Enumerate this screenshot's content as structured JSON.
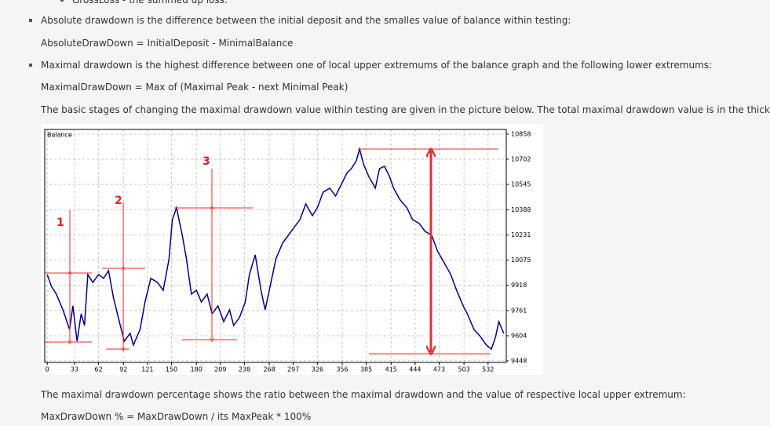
{
  "top_fragment": "GrossLoss - the summed up loss.",
  "bullet_1": "Absolute drawdown is the difference between the initial deposit and the smalles value of balance within testing:",
  "formula_1": "AbsoluteDrawDown = InitialDeposit - MinimalBalance",
  "bullet_2": "Maximal drawdown is the highest difference between one of local upper extremums of the balance graph and the following lower extremums:",
  "formula_2": "MaximalDrawDown = Max of (Maximal Peak - next Minimal Peak)",
  "paragraph_1": "The basic stages of changing the maximal drawdown value within testing are given in the picture below. The total maximal drawdown value is in the thick arrows.",
  "paragraph_2": "The maximal drawdown percentage shows the ratio between the maximal drawdown and the value of respective local upper extremum:",
  "formula_3": "MaxDrawDown % = MaxDrawDown / its MaxPeak * 100%",
  "chart_data": {
    "type": "line",
    "annotations": [
      "1",
      "2",
      "3"
    ],
    "x": [
      0,
      5,
      11,
      19,
      27,
      31,
      36,
      41,
      45,
      49,
      55,
      62,
      68,
      74,
      80,
      87,
      93,
      100,
      104,
      112,
      118,
      125,
      133,
      140,
      147,
      151,
      156,
      163,
      168,
      174,
      180,
      186,
      193,
      199,
      206,
      213,
      220,
      225,
      232,
      239,
      244,
      251,
      258,
      263,
      270,
      276,
      284,
      291,
      298,
      305,
      312,
      320,
      326,
      333,
      341,
      348,
      355,
      362,
      367,
      373,
      377,
      382,
      388,
      396,
      401,
      407,
      413,
      418,
      426,
      434,
      441,
      449,
      456,
      464,
      471,
      479,
      487,
      494,
      502,
      507,
      515,
      522,
      530,
      536,
      541,
      545,
      551
    ],
    "series": [
      {
        "name": "Balance",
        "color": "#00008b",
        "values": [
          9985,
          9912,
          9863,
          9765,
          9643,
          9790,
          9570,
          9741,
          9668,
          9985,
          9936,
          9985,
          9961,
          10009,
          9839,
          9692,
          9570,
          9619,
          9546,
          9643,
          9814,
          9961,
          9936,
          9887,
          10082,
          10326,
          10400,
          10229,
          10082,
          9863,
          9887,
          9814,
          9863,
          9741,
          9790,
          9692,
          9765,
          9668,
          9717,
          9814,
          9985,
          10107,
          9887,
          9765,
          9936,
          10082,
          10180,
          10229,
          10278,
          10326,
          10424,
          10351,
          10400,
          10497,
          10522,
          10473,
          10546,
          10619,
          10643,
          10692,
          10765,
          10668,
          10595,
          10522,
          10643,
          10658,
          10595,
          10522,
          10448,
          10400,
          10326,
          10302,
          10253,
          10229,
          10131,
          10058,
          9985,
          9887,
          9790,
          9741,
          9643,
          9604,
          9546,
          9521,
          9595,
          9692,
          9619
        ]
      }
    ],
    "xlim": [
      -3,
      554
    ],
    "ylim": [
      9438,
      10887
    ],
    "xticks": [
      0,
      33,
      62,
      92,
      121,
      150,
      180,
      209,
      238,
      268,
      297,
      326,
      356,
      385,
      415,
      444,
      473,
      503,
      532
    ],
    "yticks": [
      10858,
      10702,
      10545,
      10388,
      10231,
      10075,
      9918,
      9761,
      9604,
      9448
    ],
    "grid": true
  }
}
